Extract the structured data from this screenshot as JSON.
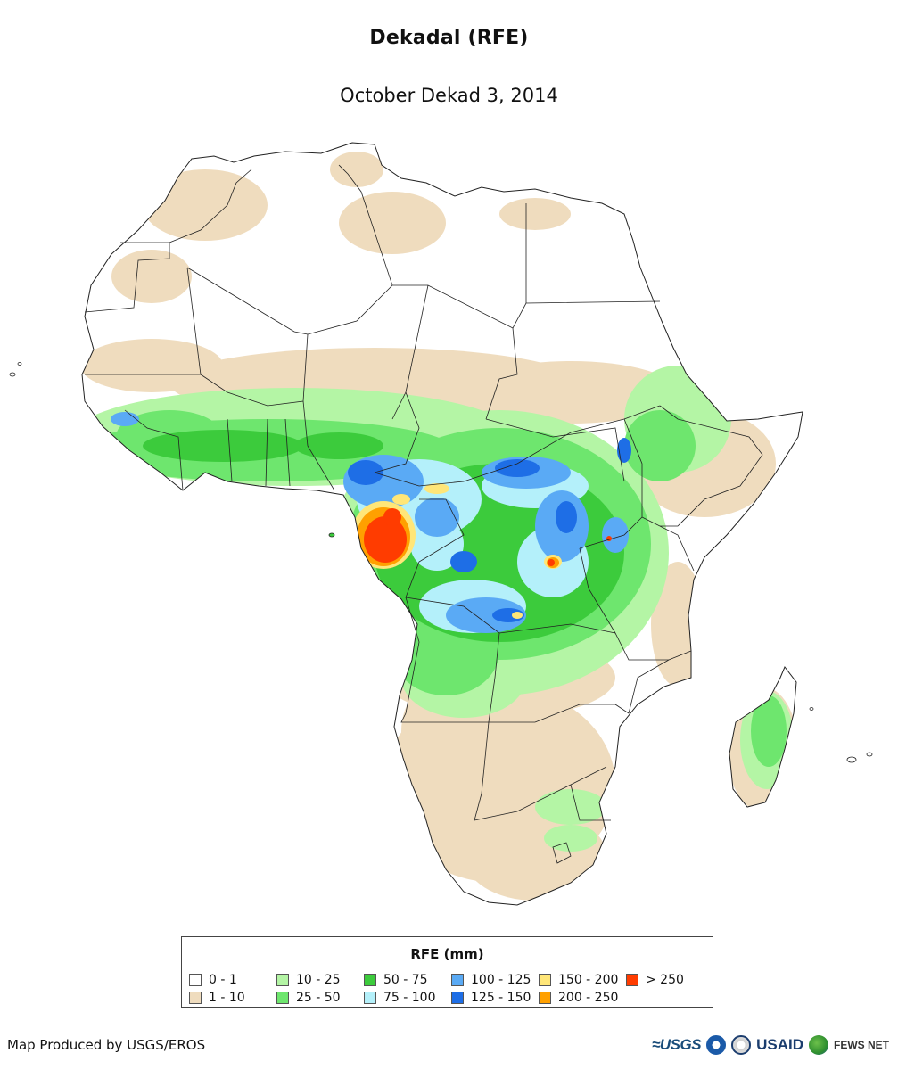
{
  "header": {
    "title": "Dekadal (RFE)",
    "subtitle": "October Dekad 3, 2014"
  },
  "legend": {
    "title": "RFE (mm)",
    "items": [
      {
        "label": "0 - 1",
        "color": "#ffffff"
      },
      {
        "label": "1 - 10",
        "color": "#efdcbe"
      },
      {
        "label": "10 - 25",
        "color": "#b4f5a5"
      },
      {
        "label": "25 - 50",
        "color": "#6ee66e"
      },
      {
        "label": "50 - 75",
        "color": "#3ccb3c"
      },
      {
        "label": "75 - 100",
        "color": "#b4f0fa"
      },
      {
        "label": "100 - 125",
        "color": "#5aaaf5"
      },
      {
        "label": "125 - 150",
        "color": "#1e6ee6"
      },
      {
        "label": "150 - 200",
        "color": "#ffe678"
      },
      {
        "label": "200 - 250",
        "color": "#ffa000"
      },
      {
        "label": "> 250",
        "color": "#ff3c00"
      }
    ]
  },
  "footer": {
    "credit": "Map Produced by USGS/EROS",
    "logos": {
      "usgs": "≈USGS",
      "usaid": "USAID",
      "fews": "FEWS NET"
    }
  }
}
